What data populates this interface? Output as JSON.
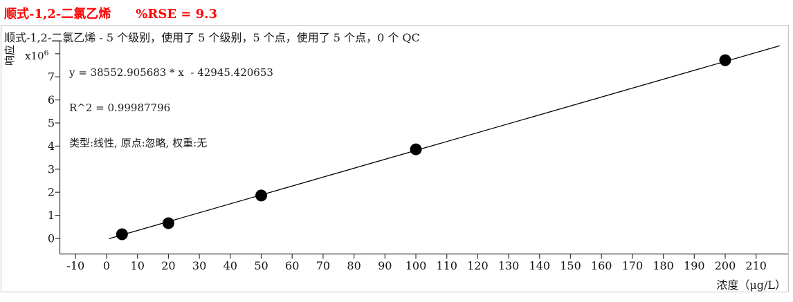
{
  "title": {
    "compound": "顺式-1,2-二氯乙烯",
    "rse": "%RSE = 9.3"
  },
  "subtitle": "顺式-1,2-二氯乙烯 - 5 个级别，使用了 5 个级别，5 个点，使用了 5 个点，0 个 QC",
  "equation": {
    "line1": "y = 38552.905683 * x  - 42945.420653",
    "line2": "R^2 = 0.99987796",
    "line3": "类型:线性, 原点:忽略, 权重:无"
  },
  "axes": {
    "y_label": "响应",
    "y_multiplier_base": "x10",
    "y_multiplier_exp": "6",
    "x_label": "浓度（μg/L）"
  },
  "colors": {
    "title_red": "#FF0000",
    "border_gray": "#C4C4C4",
    "axis": "#333333",
    "points_and_line": "#000000",
    "text": "#1A1A1A"
  },
  "chart_data": {
    "type": "scatter",
    "title": "顺式-1,2-二氯乙烯  %RSE = 9.3",
    "subtitle": "顺式-1,2-二氯乙烯 - 5 个级别，使用了 5 个级别，5 个点，使用了 5 个点，0 个 QC",
    "xlabel": "浓度（μg/L）",
    "ylabel": "响应",
    "y_multiplier": "x10^6",
    "y_multiplier_value": 8,
    "x_ticks": [
      -10,
      0,
      10,
      20,
      30,
      40,
      50,
      60,
      70,
      80,
      90,
      100,
      110,
      120,
      130,
      140,
      150,
      160,
      170,
      180,
      190,
      200,
      210
    ],
    "y_ticks": [
      0,
      1,
      2,
      3,
      4,
      5,
      6,
      7
    ],
    "xlim": [
      -15,
      218
    ],
    "ylim": [
      0,
      8000000
    ],
    "grid": false,
    "legend": "none",
    "points": [
      {
        "conc": 5,
        "response": 180000
      },
      {
        "conc": 20,
        "response": 660000
      },
      {
        "conc": 50,
        "response": 1860000
      },
      {
        "conc": 100,
        "response": 3860000
      },
      {
        "conc": 200,
        "response": 7720000
      }
    ],
    "fit": {
      "equation": "y = 38552.905683 * x  - 42945.420653",
      "slope": 38552.905683,
      "intercept": -42945.420653,
      "r2": 0.99987796,
      "rse_percent": 9.3,
      "fit_type": "线性",
      "origin": "忽略",
      "weight": "无",
      "x_draw_range": [
        0.8,
        217.6
      ]
    }
  }
}
